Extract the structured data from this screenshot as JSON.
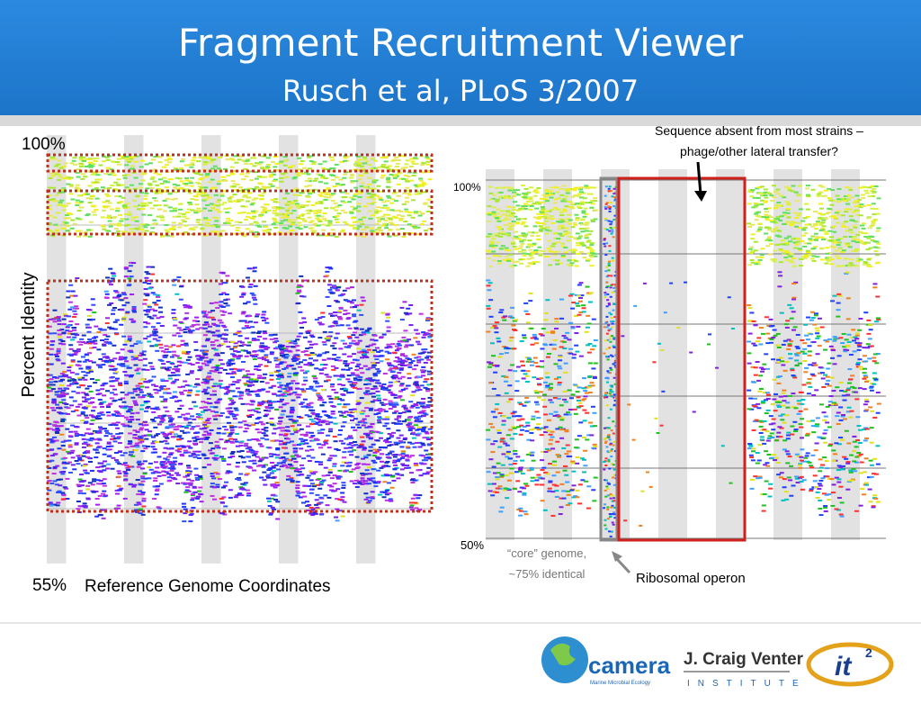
{
  "header": {
    "title": "Fragment Recruitment Viewer",
    "subtitle": "Rusch et al, PLoS 3/2007"
  },
  "left_panel": {
    "y_top_label": "100%",
    "y_bottom_label": "55%",
    "y_axis_title": "Percent Identity",
    "x_axis_title": "Reference Genome Coordinates"
  },
  "right_panel": {
    "y_top_label": "100%",
    "y_bottom_label": "50%",
    "absent_note": [
      "Sequence absent from most strains –",
      "phage/other lateral transfer?"
    ],
    "core_note": [
      "“core” genome,",
      "~75% identical"
    ],
    "operon_note": "Ribosomal operon"
  },
  "footer": {
    "camera": "camera",
    "camera_sub": "Marine Microbial Ecology",
    "jcvi": "J. Craig Venter",
    "jcvi_sub": "INSTITUTE",
    "it": "it",
    "it_sup": "2"
  }
}
